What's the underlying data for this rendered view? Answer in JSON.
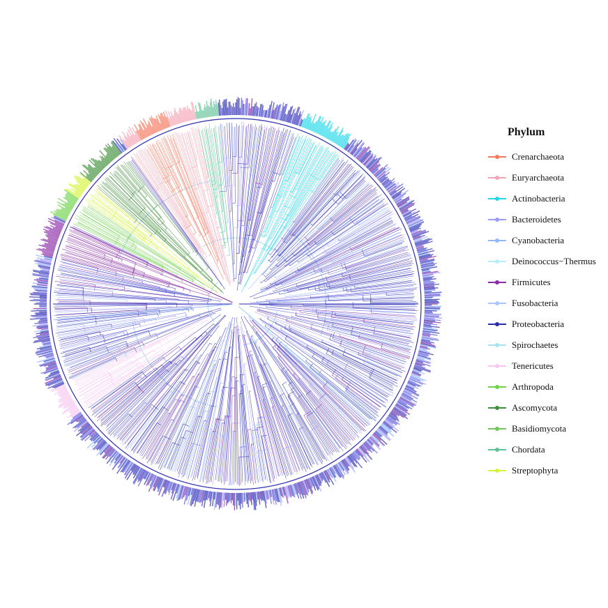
{
  "legend": {
    "title": "Phylum",
    "items": [
      {
        "label": "Crenarchaeota",
        "color": "#f8765c"
      },
      {
        "label": "Euryarchaeota",
        "color": "#f4a5b4"
      },
      {
        "label": "Actinobacteria",
        "color": "#22d8e8"
      },
      {
        "label": "Bacteroidetes",
        "color": "#9d9bff"
      },
      {
        "label": "Cyanobacteria",
        "color": "#8fb8ff"
      },
      {
        "label": "Deinococcus−Thermus",
        "color": "#b6ecf6"
      },
      {
        "label": "Firmicutes",
        "color": "#8a2aa6"
      },
      {
        "label": "Fusobacteria",
        "color": "#a9c6ff"
      },
      {
        "label": "Proteobacteria",
        "color": "#2a2bb0"
      },
      {
        "label": "Spirochaetes",
        "color": "#a8e4f2"
      },
      {
        "label": "Tenericutes",
        "color": "#f7c7f2"
      },
      {
        "label": "Arthropoda",
        "color": "#6ed34a"
      },
      {
        "label": "Ascomycota",
        "color": "#3f8f3a"
      },
      {
        "label": "Basidiomycota",
        "color": "#72c45c"
      },
      {
        "label": "Chordata",
        "color": "#63c19a"
      },
      {
        "label": "Streptophyta",
        "color": "#d6f43a"
      }
    ]
  },
  "tree": {
    "type": "circular phylogenetic tree",
    "clade_sectors": [
      {
        "phylum": "Chordata",
        "start_deg": 258,
        "end_deg": 265
      },
      {
        "phylum": "Euryarchaeota",
        "start_deg": 235,
        "end_deg": 258
      },
      {
        "phylum": "Crenarchaeota",
        "start_deg": 240,
        "end_deg": 250
      },
      {
        "phylum": "Ascomycota",
        "start_deg": 218,
        "end_deg": 233
      },
      {
        "phylum": "Streptophyta",
        "start_deg": 212,
        "end_deg": 220
      },
      {
        "phylum": "Arthropoda",
        "start_deg": 206,
        "end_deg": 214
      },
      {
        "phylum": "Tenericutes",
        "start_deg": 145,
        "end_deg": 155
      },
      {
        "phylum": "Actinobacteria",
        "start_deg": 290,
        "end_deg": 305
      },
      {
        "phylum": "Firmicutes",
        "start_deg": 195,
        "end_deg": 205
      }
    ]
  }
}
